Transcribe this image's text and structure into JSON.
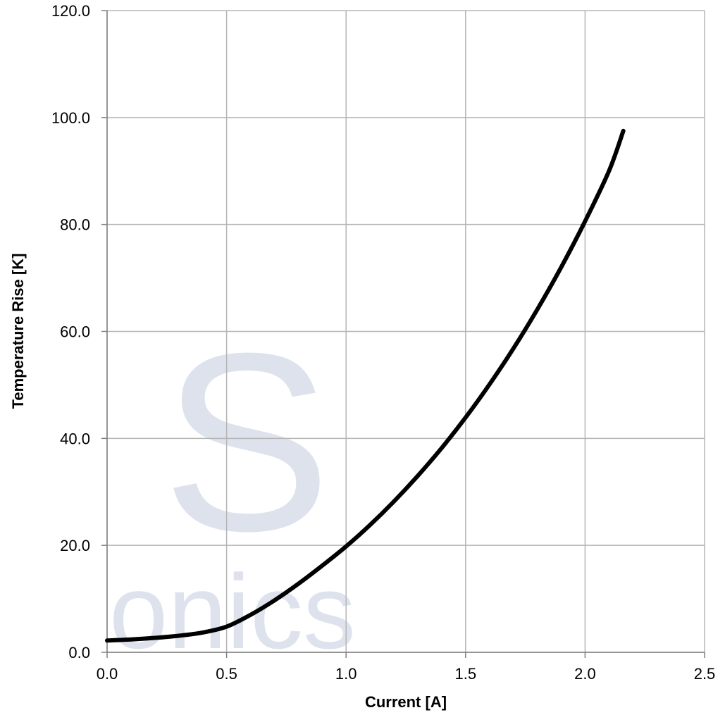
{
  "chart_data": {
    "type": "line",
    "title": "",
    "xlabel": "Current [A]",
    "ylabel": "Temperature Rise [K]",
    "xlim": [
      0,
      2.5
    ],
    "ylim": [
      0,
      120
    ],
    "xticks": [
      "0.0",
      "0.5",
      "1.0",
      "1.5",
      "2.0",
      "2.5"
    ],
    "yticks": [
      "0.0",
      "20.0",
      "40.0",
      "60.0",
      "80.0",
      "100.0",
      "120.0"
    ],
    "grid": true,
    "legend": "none",
    "series": [
      {
        "color": "#000000",
        "x": [
          0.0,
          0.1,
          0.2,
          0.3,
          0.4,
          0.5,
          0.6,
          0.7,
          0.8,
          0.9,
          1.0,
          1.1,
          1.2,
          1.3,
          1.4,
          1.5,
          1.6,
          1.7,
          1.8,
          1.9,
          2.0,
          2.1,
          2.16
        ],
        "y": [
          2.2,
          2.4,
          2.7,
          3.1,
          3.7,
          4.8,
          7.0,
          9.7,
          12.8,
          16.2,
          19.8,
          23.8,
          28.2,
          33.0,
          38.2,
          43.9,
          50.1,
          56.8,
          64.1,
          72.0,
          80.6,
          90.0,
          97.5
        ]
      }
    ]
  },
  "watermark": {
    "letters": "S",
    "word": "onics",
    "color": "#dde2ec"
  }
}
